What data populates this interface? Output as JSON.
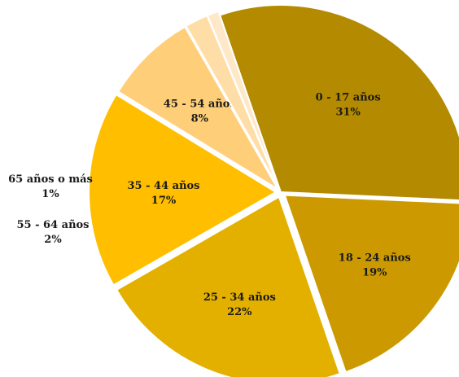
{
  "chart_data": {
    "type": "pie",
    "categories": [
      "0 - 17 años",
      "18 - 24 años",
      "25 - 34 años",
      "35 - 44 años",
      "45 - 54 años",
      "55 - 64 años",
      "65 años o más"
    ],
    "values": [
      31,
      19,
      22,
      17,
      8,
      2,
      1
    ],
    "value_labels": [
      "31%",
      "19%",
      "22%",
      "17%",
      "8%",
      "2%",
      "1%"
    ],
    "colors": [
      "#B38A00",
      "#CC9A00",
      "#E4B000",
      "#FFBE00",
      "#FFCE78",
      "#FFDDA6",
      "#FFE8C8"
    ],
    "legend": "none"
  }
}
